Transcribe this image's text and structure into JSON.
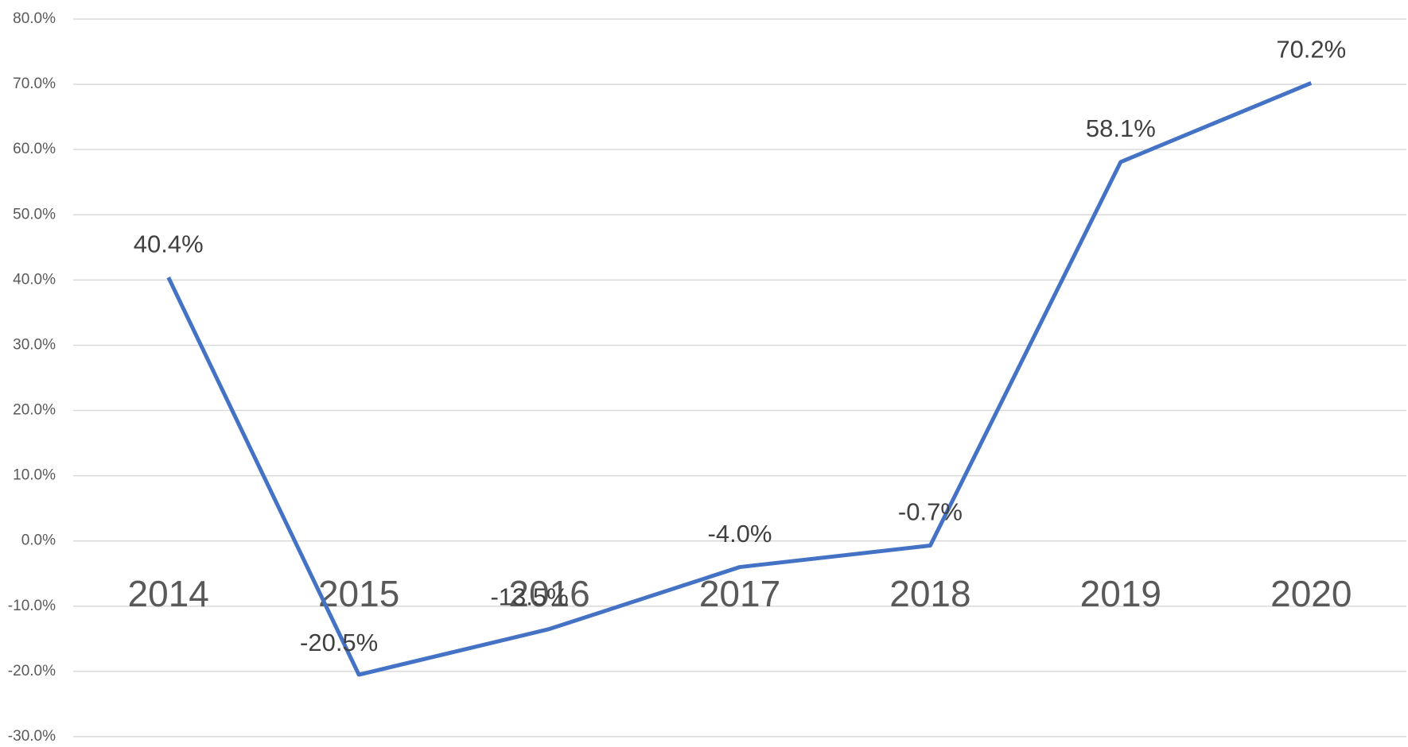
{
  "chart_data": {
    "type": "line",
    "categories": [
      "2014",
      "2015",
      "2016",
      "2017",
      "2018",
      "2019",
      "2020"
    ],
    "series": [
      {
        "color": "#4472c4",
        "values": [
          40.4,
          -20.5,
          -13.5,
          -4.0,
          -0.7,
          58.1,
          70.2
        ],
        "value_labels": [
          "40.4%",
          "-20.5%",
          "-13.5%",
          "-4.0%",
          "-0.7%",
          "58.1%",
          "70.2%"
        ]
      }
    ],
    "ylim": [
      -30,
      80
    ],
    "yticks": [
      {
        "value": -30,
        "label": "-30.0%"
      },
      {
        "value": -20,
        "label": "-20.0%"
      },
      {
        "value": -10,
        "label": "-10.0%"
      },
      {
        "value": 0,
        "label": "0.0%"
      },
      {
        "value": 10,
        "label": "10.0%"
      },
      {
        "value": 20,
        "label": "20.0%"
      },
      {
        "value": 30,
        "label": "30.0%"
      },
      {
        "value": 40,
        "label": "40.0%"
      },
      {
        "value": 50,
        "label": "50.0%"
      },
      {
        "value": 60,
        "label": "60.0%"
      },
      {
        "value": 70,
        "label": "70.0%"
      },
      {
        "value": 80,
        "label": "80.0%"
      }
    ],
    "grid": true
  }
}
